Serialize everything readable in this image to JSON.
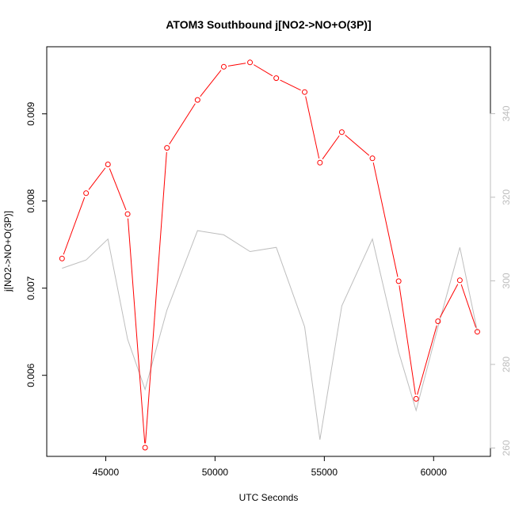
{
  "chart_data": {
    "type": "line",
    "title": "ATOM3 Southbound j[NO2->NO+O(3P)]",
    "xlabel": "UTC Seconds",
    "ylabel": "j[NO2->NO+O(3P)]",
    "xlim": [
      42300,
      62600
    ],
    "ylim": [
      0.00507,
      0.00977
    ],
    "y2lim": [
      258,
      356
    ],
    "x_ticks": [
      45000,
      50000,
      55000,
      60000
    ],
    "y_ticks": [
      0.006,
      0.007,
      0.008,
      0.009
    ],
    "y2_ticks": [
      260,
      280,
      300,
      320,
      340
    ],
    "series": [
      {
        "axis": "left",
        "color": "#ff0000",
        "marker": "open-circle",
        "x": [
          43000,
          44100,
          45100,
          46000,
          46800,
          47800,
          49200,
          50400,
          51600,
          52800,
          54100,
          54800,
          55800,
          57200,
          58400,
          59200,
          60200,
          61200,
          62000
        ],
        "y": [
          0.00734,
          0.00809,
          0.00842,
          0.00785,
          0.00517,
          0.00861,
          0.00916,
          0.00954,
          0.00959,
          0.00941,
          0.00925,
          0.00844,
          0.00879,
          0.00849,
          0.00708,
          0.00573,
          0.00662,
          0.00709,
          0.0065
        ]
      },
      {
        "axis": "right",
        "color": "#bdbdbd",
        "marker": "none",
        "x": [
          43000,
          44100,
          45100,
          46000,
          46800,
          47800,
          49200,
          50400,
          51600,
          52800,
          54100,
          54800,
          55800,
          57200,
          58400,
          59200,
          60200,
          61200,
          62000
        ],
        "y": [
          303,
          305,
          310,
          286,
          274,
          293,
          312,
          311,
          307,
          308,
          289,
          262,
          294,
          310,
          283,
          269,
          289,
          308,
          288
        ]
      }
    ]
  }
}
